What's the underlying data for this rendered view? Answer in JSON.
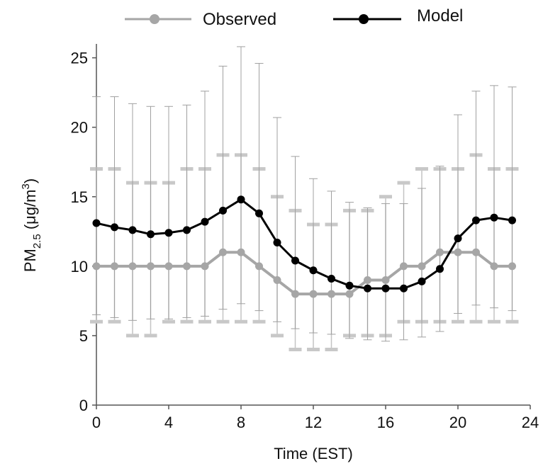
{
  "chart_data": {
    "type": "line",
    "xlabel": "Time (EST)",
    "ylabel": {
      "main": "PM",
      "sub": "2.5",
      "unit_pre": " (μg/m",
      "unit_sup": "3",
      "unit_post": ")"
    },
    "xlim": [
      0,
      24
    ],
    "ylim": [
      0,
      26
    ],
    "xticks": [
      0,
      4,
      8,
      12,
      16,
      20,
      24
    ],
    "yticks": [
      0,
      5,
      10,
      15,
      20,
      25
    ],
    "grid": false,
    "legend_position": "top",
    "x": [
      0,
      1,
      2,
      3,
      4,
      5,
      6,
      7,
      8,
      9,
      10,
      11,
      12,
      13,
      14,
      15,
      16,
      17,
      18,
      19,
      20,
      21,
      22,
      23
    ],
    "series": [
      {
        "name": "Observed",
        "color": "#a6a6a6",
        "values": [
          10,
          10,
          10,
          10,
          10,
          10,
          10,
          11,
          11,
          10,
          9,
          8,
          8,
          8,
          8,
          9,
          9,
          10,
          10,
          11,
          11,
          11,
          10,
          10
        ],
        "err_low": [
          6,
          6,
          5,
          5,
          6,
          6,
          6,
          6,
          6,
          6,
          5,
          4,
          4,
          4,
          5,
          5,
          5,
          6,
          6,
          6,
          6,
          6,
          6,
          6
        ],
        "err_high": [
          17,
          17,
          16,
          16,
          16,
          17,
          17,
          18,
          18,
          17,
          15,
          14,
          13,
          13,
          14,
          14,
          15,
          16,
          17,
          17,
          17,
          18,
          17,
          17
        ]
      },
      {
        "name": "Model",
        "color": "#000000",
        "values": [
          13.1,
          12.8,
          12.6,
          12.3,
          12.4,
          12.6,
          13.2,
          14.0,
          14.8,
          13.8,
          11.7,
          10.4,
          9.7,
          9.1,
          8.6,
          8.4,
          8.4,
          8.4,
          8.9,
          9.8,
          12.0,
          13.3,
          13.5,
          13.3
        ],
        "err_low": [
          6.5,
          6.3,
          6.1,
          6.2,
          6.2,
          6.3,
          6.4,
          6.9,
          7.3,
          6.8,
          6.0,
          5.5,
          5.2,
          5.1,
          4.8,
          4.7,
          4.6,
          4.7,
          4.9,
          5.3,
          6.6,
          7.2,
          7.0,
          6.8
        ],
        "err_high": [
          22.2,
          22.2,
          21.7,
          21.5,
          21.5,
          21.6,
          22.6,
          24.4,
          25.8,
          24.6,
          20.7,
          17.9,
          16.3,
          15.4,
          14.6,
          14.2,
          14.5,
          14.5,
          15.6,
          17.2,
          20.9,
          22.6,
          23.0,
          22.9
        ]
      }
    ]
  }
}
